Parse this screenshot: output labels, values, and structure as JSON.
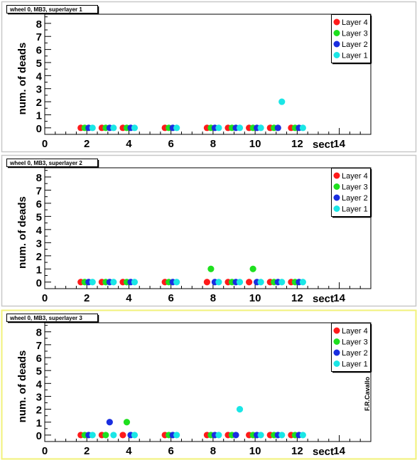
{
  "credit": "F.R.Cavallo",
  "colors": {
    "layer4": "#ff1a1a",
    "layer3": "#1ee01e",
    "layer2": "#1a2ee0",
    "layer1": "#1ae6e6",
    "panel_border": "#c8c8c8",
    "active_border": "#f2f27a"
  },
  "chart_data": [
    {
      "type": "scatter",
      "title": "wheel 0, MB3, superlayer 1",
      "xlabel": "sect",
      "ylabel": "num. of deads",
      "xlim": [
        0,
        15.5
      ],
      "ylim": [
        -0.5,
        8.7
      ],
      "x_ticks": [
        "0",
        "2",
        "4",
        "6",
        "8",
        "10",
        "12",
        "14"
      ],
      "y_ticks": [
        "0",
        "1",
        "2",
        "3",
        "4",
        "5",
        "6",
        "7",
        "8"
      ],
      "legend_position": "top-right",
      "series": [
        {
          "name": "Layer 4",
          "color": "#ff1a1a",
          "x": [
            2,
            3,
            4,
            6,
            8,
            9,
            10,
            11,
            12
          ],
          "y": [
            0,
            0,
            0,
            0,
            0,
            0,
            0,
            0,
            0
          ]
        },
        {
          "name": "Layer 3",
          "color": "#1ee01e",
          "x": [
            2,
            3,
            4,
            6,
            8,
            9,
            10,
            11,
            12
          ],
          "y": [
            0,
            0,
            0,
            0,
            0,
            0,
            0,
            0,
            0
          ]
        },
        {
          "name": "Layer 2",
          "color": "#1a2ee0",
          "x": [
            2,
            3,
            4,
            6,
            8,
            9,
            10,
            11,
            12
          ],
          "y": [
            0,
            0,
            0,
            0,
            0,
            0,
            0,
            0,
            0
          ]
        },
        {
          "name": "Layer 1",
          "color": "#1ae6e6",
          "x": [
            2,
            3,
            4,
            6,
            8,
            9,
            10,
            11,
            12
          ],
          "y": [
            0,
            0,
            0,
            0,
            0,
            0,
            0,
            2,
            0
          ]
        }
      ]
    },
    {
      "type": "scatter",
      "title": "wheel 0, MB3, superlayer 2",
      "xlabel": "sect",
      "ylabel": "num. of deads",
      "xlim": [
        0,
        15.5
      ],
      "ylim": [
        -0.5,
        8.7
      ],
      "x_ticks": [
        "0",
        "2",
        "4",
        "6",
        "8",
        "10",
        "12",
        "14"
      ],
      "y_ticks": [
        "0",
        "1",
        "2",
        "3",
        "4",
        "5",
        "6",
        "7",
        "8"
      ],
      "legend_position": "top-right",
      "series": [
        {
          "name": "Layer 4",
          "color": "#ff1a1a",
          "x": [
            2,
            3,
            4,
            6,
            8,
            9,
            10,
            11,
            12
          ],
          "y": [
            0,
            0,
            0,
            0,
            0,
            0,
            0,
            0,
            0
          ]
        },
        {
          "name": "Layer 3",
          "color": "#1ee01e",
          "x": [
            2,
            3,
            4,
            6,
            8,
            9,
            10,
            11,
            12
          ],
          "y": [
            0,
            0,
            0,
            0,
            1,
            0,
            1,
            0,
            0
          ]
        },
        {
          "name": "Layer 2",
          "color": "#1a2ee0",
          "x": [
            2,
            3,
            4,
            6,
            8,
            9,
            10,
            11,
            12
          ],
          "y": [
            0,
            0,
            0,
            0,
            0,
            0,
            0,
            0,
            0
          ]
        },
        {
          "name": "Layer 1",
          "color": "#1ae6e6",
          "x": [
            2,
            3,
            4,
            6,
            8,
            9,
            10,
            11,
            12
          ],
          "y": [
            0,
            0,
            0,
            0,
            0,
            0,
            0,
            0,
            0
          ]
        }
      ]
    },
    {
      "type": "scatter",
      "title": "wheel 0, MB3, superlayer 3",
      "xlabel": "sect",
      "ylabel": "num. of deads",
      "xlim": [
        0,
        15.5
      ],
      "ylim": [
        -0.5,
        8.7
      ],
      "x_ticks": [
        "0",
        "2",
        "4",
        "6",
        "8",
        "10",
        "12",
        "14"
      ],
      "y_ticks": [
        "0",
        "1",
        "2",
        "3",
        "4",
        "5",
        "6",
        "7",
        "8"
      ],
      "legend_position": "top-right",
      "series": [
        {
          "name": "Layer 4",
          "color": "#ff1a1a",
          "x": [
            2,
            3,
            4,
            6,
            8,
            9,
            10,
            11,
            12
          ],
          "y": [
            0,
            0,
            0,
            0,
            0,
            0,
            0,
            0,
            0
          ]
        },
        {
          "name": "Layer 3",
          "color": "#1ee01e",
          "x": [
            2,
            3,
            4,
            6,
            8,
            9,
            10,
            11,
            12
          ],
          "y": [
            0,
            0,
            1,
            0,
            0,
            0,
            0,
            0,
            0
          ]
        },
        {
          "name": "Layer 2",
          "color": "#1a2ee0",
          "x": [
            2,
            3,
            4,
            6,
            8,
            9,
            10,
            11,
            12
          ],
          "y": [
            0,
            1,
            0,
            0,
            0,
            0,
            0,
            0,
            0
          ]
        },
        {
          "name": "Layer 1",
          "color": "#1ae6e6",
          "x": [
            2,
            3,
            4,
            6,
            8,
            9,
            10,
            11,
            12
          ],
          "y": [
            0,
            0,
            0,
            0,
            0,
            2,
            0,
            0,
            0
          ]
        }
      ]
    }
  ]
}
